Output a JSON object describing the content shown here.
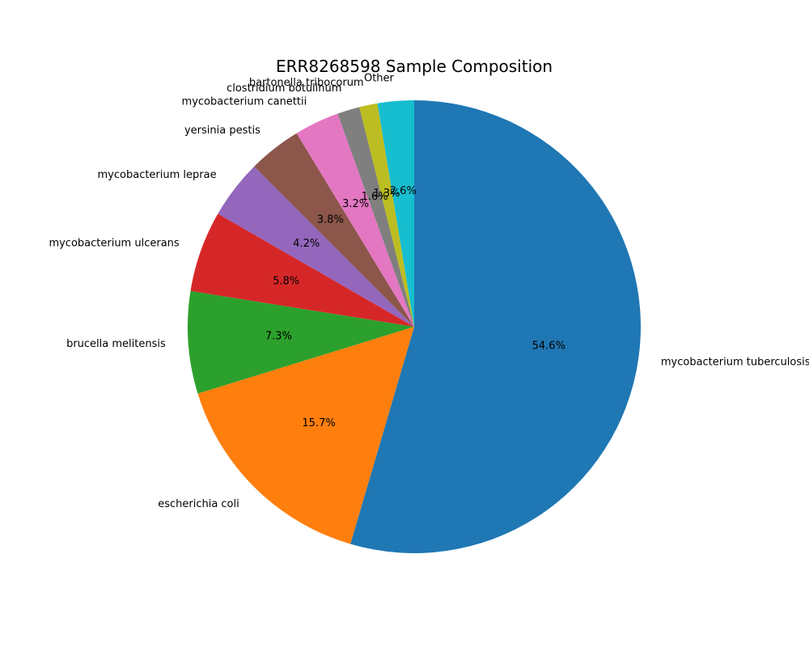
{
  "chart_data": {
    "type": "pie",
    "title": "ERR8268598 Sample Composition",
    "start_angle_deg": 90,
    "direction": "clockwise",
    "slices": [
      {
        "label": "mycobacterium tuberculosis",
        "value": 54.6,
        "pct_label": "54.6%",
        "color": "#1f77b4"
      },
      {
        "label": "escherichia coli",
        "value": 15.7,
        "pct_label": "15.7%",
        "color": "#ff7f0e"
      },
      {
        "label": "brucella melitensis",
        "value": 7.3,
        "pct_label": "7.3%",
        "color": "#2ca02c"
      },
      {
        "label": "mycobacterium ulcerans",
        "value": 5.8,
        "pct_label": "5.8%",
        "color": "#d62728"
      },
      {
        "label": "mycobacterium leprae",
        "value": 4.2,
        "pct_label": "4.2%",
        "color": "#9467bd"
      },
      {
        "label": "yersinia pestis",
        "value": 3.8,
        "pct_label": "3.8%",
        "color": "#8c564b"
      },
      {
        "label": "mycobacterium canettii",
        "value": 3.2,
        "pct_label": "3.2%",
        "color": "#e377c2"
      },
      {
        "label": "clostridium botulinum",
        "value": 1.6,
        "pct_label": "1.6%",
        "color": "#7f7f7f"
      },
      {
        "label": "bartonella tribocorum",
        "value": 1.3,
        "pct_label": "1.3%",
        "color": "#bcbd22"
      },
      {
        "label": "Other",
        "value": 2.6,
        "pct_label": "2.6%",
        "color": "#17becf"
      }
    ]
  }
}
